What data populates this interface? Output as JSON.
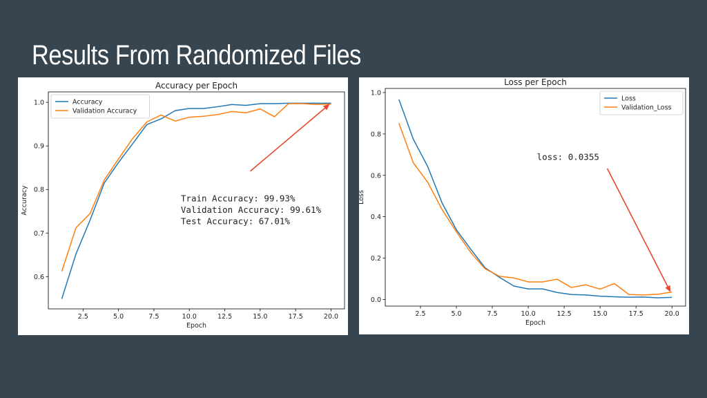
{
  "slide": {
    "title": "Results From Randomized Files"
  },
  "colors": {
    "accent": "#1f77b4",
    "secondary": "#ff7f0e",
    "arrow": "#e8452c",
    "background": "#36454f"
  },
  "chart_data": [
    {
      "type": "line",
      "title": "Accuracy per Epoch",
      "xlabel": "Epoch",
      "ylabel": "Accuracy",
      "xlim": [
        0.05,
        20.95
      ],
      "ylim": [
        0.526,
        1.024
      ],
      "xticks": [
        2.5,
        5.0,
        7.5,
        10.0,
        12.5,
        15.0,
        17.5,
        20.0
      ],
      "xtick_labels": [
        "2.5",
        "5.0",
        "7.5",
        "10.0",
        "12.5",
        "15.0",
        "17.5",
        "20.0"
      ],
      "yticks": [
        0.6,
        0.7,
        0.8,
        0.9,
        1.0
      ],
      "ytick_labels": [
        "0.6",
        "0.7",
        "0.8",
        "0.9",
        "1.0"
      ],
      "legend": "top-left",
      "grid": false,
      "x": [
        1,
        2,
        3,
        4,
        5,
        6,
        7,
        8,
        9,
        10,
        11,
        12,
        13,
        14,
        15,
        16,
        17,
        18,
        19,
        20
      ],
      "series": [
        {
          "name": "Accuracy",
          "color": "#1f77b4",
          "values": [
            0.549,
            0.652,
            0.73,
            0.815,
            0.862,
            0.905,
            0.949,
            0.962,
            0.981,
            0.986,
            0.986,
            0.99,
            0.995,
            0.993,
            0.997,
            0.997,
            0.998,
            0.998,
            0.998,
            0.998
          ]
        },
        {
          "name": "Validation Accuracy",
          "color": "#ff7f0e",
          "values": [
            0.612,
            0.712,
            0.745,
            0.822,
            0.87,
            0.917,
            0.955,
            0.971,
            0.957,
            0.966,
            0.968,
            0.972,
            0.979,
            0.976,
            0.985,
            0.967,
            0.997,
            0.997,
            0.995,
            0.996
          ]
        }
      ],
      "annotation": {
        "lines": [
          "Train Accuracy: 99.93%",
          "Validation Accuracy: 99.61%",
          "Test Accuracy: 67.01%"
        ],
        "text_anchor": [
          9.4,
          0.773
        ],
        "arrow_from": [
          14.3,
          0.842
        ],
        "arrow_to": [
          19.9,
          0.996
        ]
      }
    },
    {
      "type": "line",
      "title": "Loss per Epoch",
      "xlabel": "Epoch",
      "ylabel": "Loss",
      "xlim": [
        0.05,
        20.95
      ],
      "ylim": [
        -0.032,
        1.02
      ],
      "xticks": [
        2.5,
        5.0,
        7.5,
        10.0,
        12.5,
        15.0,
        17.5,
        20.0
      ],
      "xtick_labels": [
        "2.5",
        "5.0",
        "7.5",
        "10.0",
        "12.5",
        "15.0",
        "17.5",
        "20.0"
      ],
      "yticks": [
        0.0,
        0.2,
        0.4,
        0.6,
        0.8,
        1.0
      ],
      "ytick_labels": [
        "0.0",
        "0.2",
        "0.4",
        "0.6",
        "0.8",
        "1.0"
      ],
      "legend": "top-right",
      "grid": false,
      "x": [
        1,
        2,
        3,
        4,
        5,
        6,
        7,
        8,
        9,
        10,
        11,
        12,
        13,
        14,
        15,
        16,
        17,
        18,
        19,
        20
      ],
      "series": [
        {
          "name": "Loss",
          "color": "#1f77b4",
          "values": [
            0.967,
            0.775,
            0.643,
            0.467,
            0.337,
            0.243,
            0.153,
            0.107,
            0.065,
            0.051,
            0.051,
            0.034,
            0.024,
            0.022,
            0.016,
            0.013,
            0.011,
            0.012,
            0.008,
            0.01
          ]
        },
        {
          "name": "Validation_Loss",
          "color": "#ff7f0e",
          "values": [
            0.852,
            0.661,
            0.567,
            0.435,
            0.327,
            0.227,
            0.148,
            0.112,
            0.104,
            0.085,
            0.085,
            0.098,
            0.058,
            0.071,
            0.05,
            0.077,
            0.024,
            0.022,
            0.025,
            0.036
          ]
        }
      ],
      "annotation": {
        "lines": [
          "loss: 0.0355"
        ],
        "text_anchor": [
          10.6,
          0.675
        ],
        "arrow_from": [
          15.5,
          0.633
        ],
        "arrow_to": [
          19.9,
          0.036
        ]
      }
    }
  ]
}
